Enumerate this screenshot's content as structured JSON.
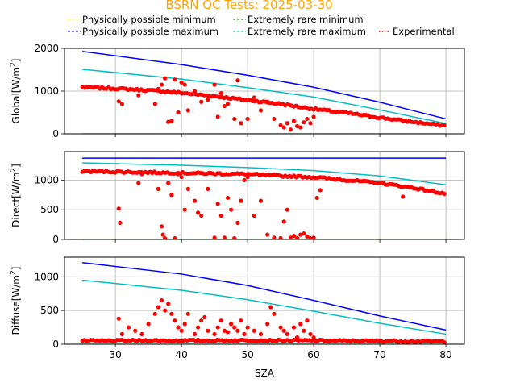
{
  "chart_data": {
    "type": "scatter",
    "title": "BSRN QC Tests: 2025-03-30",
    "xlabel": "SZA",
    "xlim": [
      22.3,
      82.8
    ],
    "xticks": [
      30,
      40,
      50,
      60,
      70,
      80
    ],
    "grid": true,
    "legend": {
      "placement": "top",
      "entries": [
        {
          "label": "Physically possible minimum",
          "color": "#ffff00",
          "style": "dashed"
        },
        {
          "label": "Extremely rare minimum",
          "color": "#008000",
          "style": "dashed"
        },
        {
          "label": "Physically possible maximum",
          "color": "#0000ff",
          "style": "dashed"
        },
        {
          "label": "Extremely rare maximum",
          "color": "#00bfbf",
          "style": "dashed"
        },
        {
          "label": "Experimental",
          "color": "#ff0000",
          "style": "dotted"
        }
      ]
    },
    "panels": [
      {
        "id": "global",
        "ylabel_main": "Global[W/m",
        "ylabel_sup": "2",
        "ylabel_end": "]",
        "ylim": [
          0,
          2000
        ],
        "yticks": [
          0,
          1000,
          2000
        ],
        "series": [
          {
            "name": "Physically possible minimum",
            "color": "#ffff00",
            "x": [
              25,
              80
            ],
            "y": [
              -4,
              -4
            ]
          },
          {
            "name": "Extremely rare minimum",
            "color": "#008000",
            "x": [
              25,
              80
            ],
            "y": [
              -2,
              -2
            ]
          },
          {
            "name": "Physically possible maximum",
            "color": "#0000ff",
            "x": [
              25,
              40,
              50,
              60,
              70,
              80
            ],
            "y": [
              1930,
              1620,
              1370,
              1090,
              740,
              350
            ]
          },
          {
            "name": "Extremely rare maximum",
            "color": "#00bfbf",
            "x": [
              25,
              40,
              50,
              60,
              70,
              80
            ],
            "y": [
              1510,
              1280,
              1080,
              860,
              560,
              240
            ]
          },
          {
            "name": "Experimental",
            "color": "#ff0000",
            "x": [
              25,
              30,
              35,
              40,
              45,
              50,
              55,
              60,
              65,
              70,
              75,
              80
            ],
            "y": [
              1090,
              1060,
              1020,
              960,
              880,
              790,
              700,
              580,
              490,
              380,
              280,
              190
            ]
          },
          {
            "name": "Experimental",
            "color": "#ff0000",
            "x": [
              30.5,
              31,
              33.5,
              36,
              36.5,
              37,
              37.5,
              38,
              38.5,
              39,
              39.5,
              40,
              40.5,
              41,
              42,
              43,
              44,
              45,
              45.5,
              46,
              46.5,
              47,
              48,
              48.5,
              49,
              49.5,
              50,
              51,
              52,
              53,
              54,
              55,
              55.5,
              56,
              56.5,
              57,
              57.5,
              58,
              58.5,
              59,
              59.5,
              60
            ],
            "y": [
              760,
              700,
              900,
              700,
              1050,
              1150,
              1300,
              280,
              300,
              1270,
              500,
              1200,
              1150,
              550,
              1000,
              750,
              800,
              1150,
              400,
              950,
              650,
              700,
              350,
              1250,
              250,
              800,
              350,
              850,
              550,
              750,
              350,
              200,
              150,
              250,
              100,
              300,
              180,
              150,
              270,
              350,
              250,
              400
            ]
          }
        ]
      },
      {
        "id": "direct",
        "ylabel_main": "Direct[W/m",
        "ylabel_sup": "2",
        "ylabel_end": "]",
        "ylim": [
          0,
          1480
        ],
        "yticks": [
          0,
          500,
          1000
        ],
        "series": [
          {
            "name": "Physically possible minimum",
            "color": "#ffff00",
            "x": [
              25,
              80
            ],
            "y": [
              -4,
              -4
            ]
          },
          {
            "name": "Extremely rare minimum",
            "color": "#008000",
            "x": [
              25,
              80
            ],
            "y": [
              -2,
              -2
            ]
          },
          {
            "name": "Physically possible maximum",
            "color": "#0000ff",
            "x": [
              25,
              80
            ],
            "y": [
              1370,
              1370
            ]
          },
          {
            "name": "Extremely rare maximum",
            "color": "#00bfbf",
            "x": [
              25,
              40,
              50,
              60,
              70,
              80
            ],
            "y": [
              1290,
              1250,
              1210,
              1160,
              1070,
              920
            ]
          },
          {
            "name": "Experimental",
            "color": "#ff0000",
            "x": [
              25,
              30,
              35,
              40,
              45,
              50,
              55,
              60,
              65,
              70,
              75,
              80
            ],
            "y": [
              1150,
              1140,
              1130,
              1120,
              1110,
              1100,
              1070,
              1050,
              1000,
              950,
              870,
              770
            ]
          },
          {
            "name": "Experimental",
            "color": "#ff0000",
            "x": [
              30.5,
              30.7,
              33.5,
              34,
              36.5,
              37,
              37.2,
              37.5,
              38,
              38.5,
              39,
              39.5,
              40,
              40.5,
              41,
              42,
              42.5,
              43,
              44,
              45,
              45.5,
              46,
              46.5,
              47,
              47.5,
              48,
              48.5,
              49,
              49.5,
              50,
              51,
              52,
              53,
              54,
              55,
              55.5,
              56,
              56.5,
              57,
              57.5,
              58,
              58.5,
              59,
              59.5,
              60,
              60.5,
              61,
              73.5
            ],
            "y": [
              520,
              280,
              950,
              1100,
              850,
              220,
              80,
              20,
              950,
              750,
              20,
              1100,
              1050,
              500,
              850,
              650,
              450,
              400,
              850,
              30,
              600,
              400,
              30,
              700,
              500,
              20,
              280,
              650,
              1000,
              1050,
              400,
              650,
              80,
              30,
              20,
              300,
              500,
              30,
              60,
              20,
              80,
              100,
              50,
              20,
              30,
              700,
              830,
              720
            ]
          }
        ]
      },
      {
        "id": "diffuse",
        "ylabel_main": "Diffuse[W/m",
        "ylabel_sup": "2",
        "ylabel_end": "]",
        "ylim": [
          0,
          1290
        ],
        "yticks": [
          0,
          500,
          1000
        ],
        "series": [
          {
            "name": "Physically possible minimum",
            "color": "#ffff00",
            "x": [
              25,
              80
            ],
            "y": [
              -4,
              -4
            ]
          },
          {
            "name": "Extremely rare minimum",
            "color": "#008000",
            "x": [
              25,
              80
            ],
            "y": [
              -2,
              -2
            ]
          },
          {
            "name": "Physically possible maximum",
            "color": "#0000ff",
            "x": [
              25,
              40,
              50,
              60,
              70,
              80
            ],
            "y": [
              1210,
              1040,
              870,
              650,
              420,
              210
            ]
          },
          {
            "name": "Extremely rare maximum",
            "color": "#00bfbf",
            "x": [
              25,
              40,
              50,
              60,
              70,
              80
            ],
            "y": [
              950,
              800,
              660,
              490,
              310,
              150
            ]
          },
          {
            "name": "Experimental",
            "color": "#ff0000",
            "x": [
              25,
              30,
              35,
              40,
              45,
              50,
              55,
              60,
              65,
              70,
              75,
              80
            ],
            "y": [
              50,
              52,
              55,
              55,
              55,
              58,
              55,
              55,
              50,
              48,
              45,
              40
            ]
          },
          {
            "name": "Experimental",
            "color": "#ff0000",
            "x": [
              30.5,
              31,
              32,
              33,
              34,
              35,
              36,
              36.5,
              37,
              37.5,
              38,
              38.5,
              39,
              39.5,
              40,
              40.5,
              41,
              42,
              42.5,
              43,
              43.5,
              44,
              45,
              45.5,
              46,
              46.5,
              47,
              47.5,
              48,
              48.5,
              49,
              49.5,
              50,
              51,
              52,
              53,
              53.5,
              54,
              55,
              55.5,
              56,
              57,
              57.5,
              58,
              58.5,
              59,
              59.5,
              60
            ],
            "y": [
              380,
              150,
              250,
              200,
              150,
              300,
              450,
              550,
              650,
              500,
              600,
              450,
              350,
              250,
              200,
              300,
              450,
              150,
              250,
              350,
              400,
              200,
              150,
              250,
              350,
              200,
              180,
              300,
              250,
              200,
              350,
              150,
              250,
              200,
              150,
              300,
              550,
              450,
              250,
              200,
              150,
              250,
              100,
              300,
              200,
              350,
              150,
              100
            ]
          }
        ]
      }
    ]
  }
}
